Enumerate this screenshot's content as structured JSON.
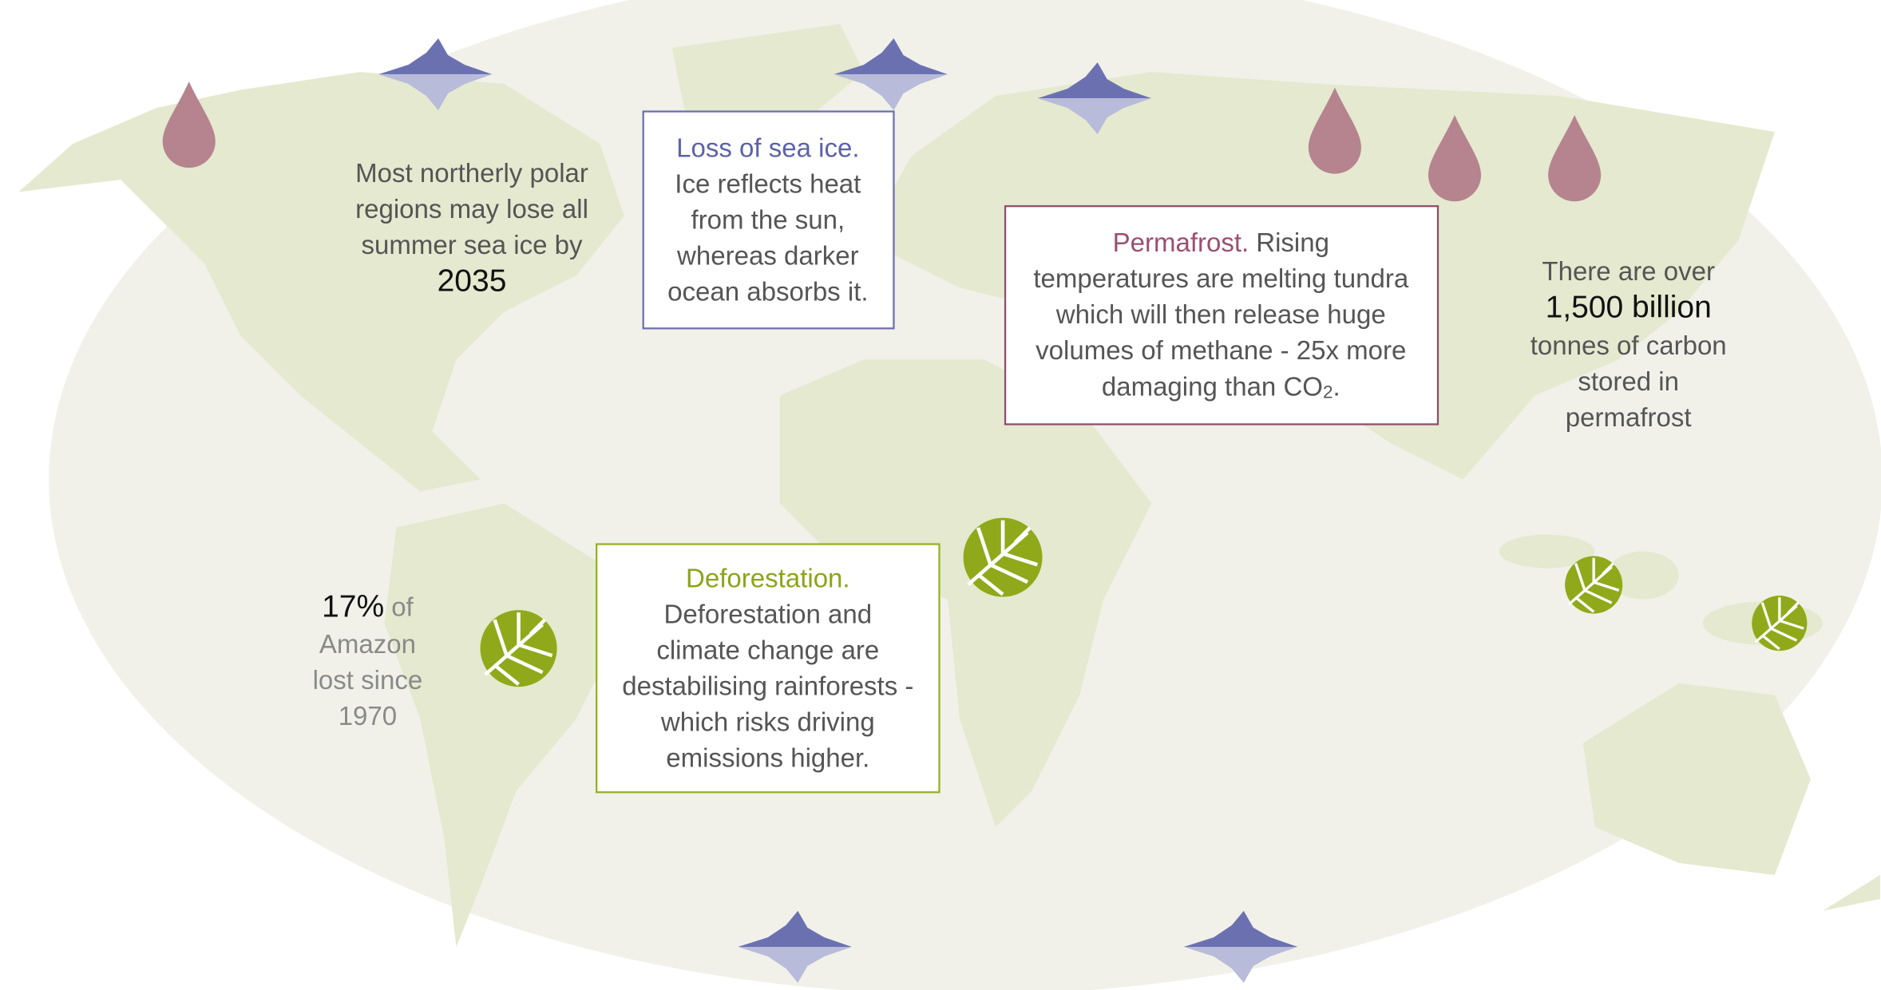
{
  "polar_note": {
    "lines": [
      "Most northerly polar",
      "regions may lose all",
      "summer sea ice by"
    ],
    "highlight": "2035"
  },
  "sea_ice_box": {
    "heading": "Loss of sea ice.",
    "lines": [
      "Ice reflects heat",
      "from the sun,",
      "whereas darker",
      "ocean absorbs it."
    ]
  },
  "permafrost_box": {
    "heading": "Permafrost.",
    "first_line_rest": "Rising",
    "lines": [
      "temperatures are melting tundra",
      "which will then release huge",
      "volumes of methane - 25x more"
    ],
    "last_line": "damaging than CO",
    "subscript": "2",
    "end": "."
  },
  "carbon_note": {
    "intro": "There are over",
    "highlight": "1,500 billion",
    "lines": [
      "tonnes of carbon",
      "stored in",
      "permafrost"
    ]
  },
  "amazon_note": {
    "highlight": "17%",
    "first_line_rest": "of",
    "lines": [
      "Amazon",
      "lost since",
      "1970"
    ]
  },
  "deforestation_box": {
    "heading": "Deforestation.",
    "lines": [
      "Deforestation and",
      "climate change are",
      "destabilising rainforests -",
      "which risks driving",
      "emissions higher."
    ]
  }
}
